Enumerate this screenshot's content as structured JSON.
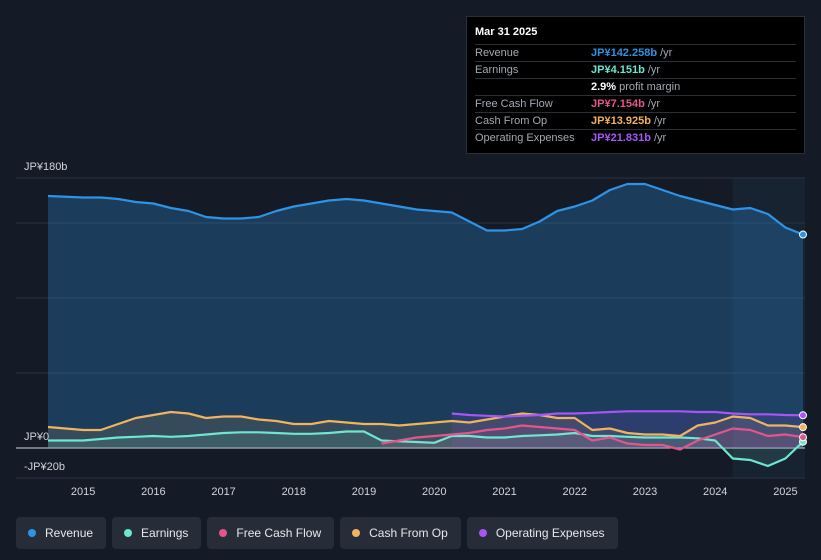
{
  "tooltip": {
    "date": "Mar 31 2025",
    "rows": [
      {
        "label": "Revenue",
        "value": "JP¥142.258b",
        "unit": "/yr",
        "color": "#2e93e5"
      },
      {
        "label": "Earnings",
        "value": "JP¥4.151b",
        "unit": "/yr",
        "color": "#6ee6d0"
      },
      {
        "label": "",
        "value": "2.9%",
        "unit": "profit margin",
        "color": "#ffffff"
      },
      {
        "label": "Free Cash Flow",
        "value": "JP¥7.154b",
        "unit": "/yr",
        "color": "#e2568c"
      },
      {
        "label": "Cash From Op",
        "value": "JP¥13.925b",
        "unit": "/yr",
        "color": "#f0b35e"
      },
      {
        "label": "Operating Expenses",
        "value": "JP¥21.831b",
        "unit": "/yr",
        "color": "#a855f7"
      }
    ]
  },
  "legend": [
    {
      "label": "Revenue",
      "color": "#2e93e5"
    },
    {
      "label": "Earnings",
      "color": "#6ee6d0"
    },
    {
      "label": "Free Cash Flow",
      "color": "#e2568c"
    },
    {
      "label": "Cash From Op",
      "color": "#f0b35e"
    },
    {
      "label": "Operating Expenses",
      "color": "#a855f7"
    }
  ],
  "chart_data": {
    "type": "line",
    "title": "",
    "xlabel": "",
    "ylabel": "",
    "y_tick_labels": [
      "JP¥180b",
      "JP¥0",
      "-JP¥20b"
    ],
    "ylim": [
      -20,
      180
    ],
    "xlim": [
      2014.5,
      2025.25
    ],
    "x_tick_labels": [
      "2015",
      "2016",
      "2017",
      "2018",
      "2019",
      "2020",
      "2021",
      "2022",
      "2023",
      "2024",
      "2025"
    ],
    "forecast_region_start": 2024.25,
    "series": [
      {
        "name": "Revenue",
        "color": "#2e93e5",
        "points": [
          [
            2014.5,
            168
          ],
          [
            2015.0,
            167
          ],
          [
            2015.25,
            167
          ],
          [
            2015.5,
            166
          ],
          [
            2015.75,
            164
          ],
          [
            2016.0,
            163
          ],
          [
            2016.25,
            160
          ],
          [
            2016.5,
            158
          ],
          [
            2016.75,
            154
          ],
          [
            2017.0,
            153
          ],
          [
            2017.25,
            153
          ],
          [
            2017.5,
            154
          ],
          [
            2017.75,
            158
          ],
          [
            2018.0,
            161
          ],
          [
            2018.25,
            163
          ],
          [
            2018.5,
            165
          ],
          [
            2018.75,
            166
          ],
          [
            2019.0,
            165
          ],
          [
            2019.25,
            163
          ],
          [
            2019.5,
            161
          ],
          [
            2019.75,
            159
          ],
          [
            2020.0,
            158
          ],
          [
            2020.25,
            157
          ],
          [
            2020.5,
            151
          ],
          [
            2020.75,
            145
          ],
          [
            2021.0,
            145
          ],
          [
            2021.25,
            146
          ],
          [
            2021.5,
            151
          ],
          [
            2021.75,
            158
          ],
          [
            2022.0,
            161
          ],
          [
            2022.25,
            165
          ],
          [
            2022.5,
            172
          ],
          [
            2022.75,
            176
          ],
          [
            2023.0,
            176
          ],
          [
            2023.25,
            172
          ],
          [
            2023.5,
            168
          ],
          [
            2023.75,
            165
          ],
          [
            2024.0,
            162
          ],
          [
            2024.25,
            159
          ],
          [
            2024.5,
            160
          ],
          [
            2024.75,
            156
          ],
          [
            2025.0,
            147
          ],
          [
            2025.25,
            142.3
          ]
        ]
      },
      {
        "name": "Earnings",
        "color": "#6ee6d0",
        "points": [
          [
            2014.5,
            5
          ],
          [
            2015.0,
            5
          ],
          [
            2015.25,
            6
          ],
          [
            2015.5,
            7
          ],
          [
            2015.75,
            7.5
          ],
          [
            2016.0,
            8
          ],
          [
            2016.25,
            7.5
          ],
          [
            2016.5,
            8
          ],
          [
            2016.75,
            9
          ],
          [
            2017.0,
            10
          ],
          [
            2017.25,
            10.5
          ],
          [
            2017.5,
            10.5
          ],
          [
            2017.75,
            10
          ],
          [
            2018.0,
            9.5
          ],
          [
            2018.25,
            9.5
          ],
          [
            2018.5,
            10
          ],
          [
            2018.75,
            11
          ],
          [
            2019.0,
            11
          ],
          [
            2019.25,
            5
          ],
          [
            2019.5,
            4.5
          ],
          [
            2019.75,
            4
          ],
          [
            2020.0,
            3.5
          ],
          [
            2020.25,
            8
          ],
          [
            2020.5,
            8
          ],
          [
            2020.75,
            7
          ],
          [
            2021.0,
            7
          ],
          [
            2021.25,
            8
          ],
          [
            2021.5,
            8.5
          ],
          [
            2021.75,
            9
          ],
          [
            2022.0,
            10
          ],
          [
            2022.25,
            8
          ],
          [
            2022.5,
            8
          ],
          [
            2022.75,
            7.5
          ],
          [
            2023.0,
            7
          ],
          [
            2023.25,
            7
          ],
          [
            2023.5,
            7
          ],
          [
            2023.75,
            6.5
          ],
          [
            2024.0,
            5
          ],
          [
            2024.25,
            -7
          ],
          [
            2024.5,
            -8
          ],
          [
            2024.75,
            -12
          ],
          [
            2025.0,
            -7
          ],
          [
            2025.25,
            4.2
          ]
        ]
      },
      {
        "name": "Free Cash Flow",
        "color": "#e2568c",
        "points": [
          [
            2019.25,
            3
          ],
          [
            2019.5,
            5
          ],
          [
            2019.75,
            7
          ],
          [
            2020.0,
            8
          ],
          [
            2020.25,
            9
          ],
          [
            2020.5,
            10
          ],
          [
            2020.75,
            12
          ],
          [
            2021.0,
            13
          ],
          [
            2021.25,
            15
          ],
          [
            2021.5,
            14
          ],
          [
            2021.75,
            13
          ],
          [
            2022.0,
            12
          ],
          [
            2022.25,
            5
          ],
          [
            2022.5,
            7
          ],
          [
            2022.75,
            3
          ],
          [
            2023.0,
            2
          ],
          [
            2023.25,
            2
          ],
          [
            2023.5,
            -1
          ],
          [
            2023.75,
            5
          ],
          [
            2024.0,
            9
          ],
          [
            2024.25,
            13
          ],
          [
            2024.5,
            12
          ],
          [
            2024.75,
            8
          ],
          [
            2025.0,
            9
          ],
          [
            2025.25,
            7.2
          ]
        ]
      },
      {
        "name": "Cash From Op",
        "color": "#f0b35e",
        "points": [
          [
            2014.5,
            14
          ],
          [
            2015.0,
            12
          ],
          [
            2015.25,
            12
          ],
          [
            2015.5,
            16
          ],
          [
            2015.75,
            20
          ],
          [
            2016.0,
            22
          ],
          [
            2016.25,
            24
          ],
          [
            2016.5,
            23
          ],
          [
            2016.75,
            20
          ],
          [
            2017.0,
            21
          ],
          [
            2017.25,
            21
          ],
          [
            2017.5,
            19
          ],
          [
            2017.75,
            18
          ],
          [
            2018.0,
            16
          ],
          [
            2018.25,
            16
          ],
          [
            2018.5,
            18
          ],
          [
            2018.75,
            17
          ],
          [
            2019.0,
            16
          ],
          [
            2019.25,
            16
          ],
          [
            2019.5,
            15
          ],
          [
            2019.75,
            16
          ],
          [
            2020.0,
            17
          ],
          [
            2020.25,
            18
          ],
          [
            2020.5,
            17
          ],
          [
            2020.75,
            19
          ],
          [
            2021.0,
            21
          ],
          [
            2021.25,
            23
          ],
          [
            2021.5,
            22
          ],
          [
            2021.75,
            20
          ],
          [
            2022.0,
            20
          ],
          [
            2022.25,
            12
          ],
          [
            2022.5,
            13
          ],
          [
            2022.75,
            10
          ],
          [
            2023.0,
            9
          ],
          [
            2023.25,
            9
          ],
          [
            2023.5,
            8
          ],
          [
            2023.75,
            15
          ],
          [
            2024.0,
            17
          ],
          [
            2024.25,
            21
          ],
          [
            2024.5,
            20
          ],
          [
            2024.75,
            15
          ],
          [
            2025.0,
            15
          ],
          [
            2025.25,
            13.9
          ]
        ]
      },
      {
        "name": "Operating Expenses",
        "color": "#a855f7",
        "points": [
          [
            2020.25,
            23
          ],
          [
            2020.5,
            22
          ],
          [
            2020.75,
            21.5
          ],
          [
            2021.0,
            21
          ],
          [
            2021.25,
            21.5
          ],
          [
            2021.5,
            22
          ],
          [
            2021.75,
            23
          ],
          [
            2022.0,
            23
          ],
          [
            2022.25,
            23.5
          ],
          [
            2022.5,
            24
          ],
          [
            2022.75,
            24.5
          ],
          [
            2023.0,
            24.5
          ],
          [
            2023.25,
            24.5
          ],
          [
            2023.5,
            24.5
          ],
          [
            2023.75,
            24
          ],
          [
            2024.0,
            24
          ],
          [
            2024.25,
            23
          ],
          [
            2024.5,
            22.5
          ],
          [
            2024.75,
            22.5
          ],
          [
            2025.0,
            22
          ],
          [
            2025.25,
            21.8
          ]
        ]
      }
    ]
  }
}
